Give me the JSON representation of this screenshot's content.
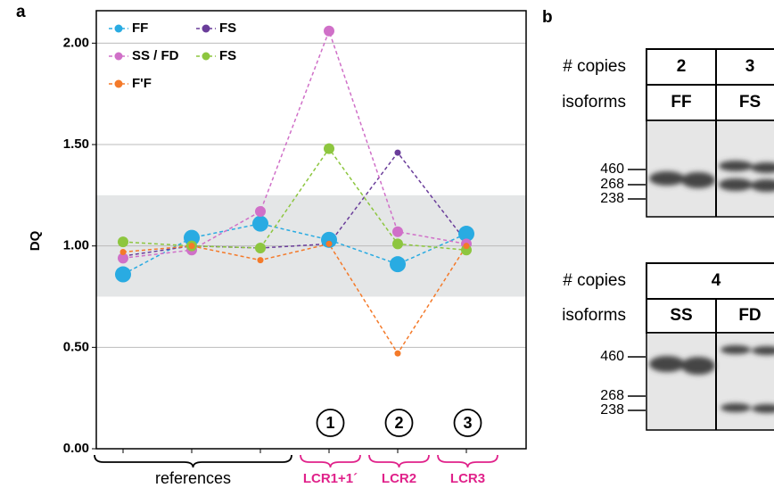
{
  "chart_data": {
    "type": "line",
    "panel_label": "a",
    "y_label": "DQ",
    "categories": [
      null,
      null,
      null,
      null,
      null,
      null
    ],
    "groups": [
      {
        "label": "references",
        "size": 3
      },
      {
        "label": "LCR1+1´",
        "number": "1",
        "size": 1
      },
      {
        "label": "LCR2",
        "number": "2",
        "size": 1
      },
      {
        "label": "LCR3",
        "number": "3",
        "size": 1
      }
    ],
    "series": [
      {
        "name": "FF",
        "color": "#29abe2",
        "values": [
          0.86,
          1.04,
          1.11,
          1.03,
          0.91,
          1.06
        ]
      },
      {
        "name": "FS",
        "color": "#6a3d9a",
        "values": [
          0.95,
          1.0,
          0.99,
          1.01,
          1.46,
          1.02
        ]
      },
      {
        "name": "SS / FD",
        "color": "#d070c8",
        "values": [
          0.94,
          0.98,
          1.17,
          2.06,
          1.07,
          1.01
        ]
      },
      {
        "name": "FS",
        "color": "#8dc63f",
        "values": [
          1.02,
          1.0,
          0.99,
          1.48,
          1.01,
          0.98
        ]
      },
      {
        "name": "F'F",
        "color": "#f47a2a",
        "values": [
          0.97,
          1.0,
          0.93,
          1.01,
          0.47,
          1.0
        ]
      }
    ],
    "ylim": [
      0,
      2.16
    ],
    "yticks": [
      {
        "value": 0,
        "label": "0.00"
      },
      {
        "value": 0.5,
        "label": "0.50"
      },
      {
        "value": 1,
        "label": "1.00"
      },
      {
        "value": 1.5,
        "label": "1.50"
      },
      {
        "value": 2,
        "label": "2.00"
      }
    ],
    "band": [
      0.75,
      1.25
    ],
    "grid": true,
    "legend": "upper left"
  },
  "panel_b": {
    "label": "b",
    "gels": [
      {
        "copies_label": "# copies",
        "isoforms_label": "isoforms",
        "copies": [
          "2",
          "3"
        ],
        "isoforms": [
          "FF",
          "FS"
        ],
        "markers": [
          "460",
          "268",
          "238"
        ]
      },
      {
        "copies_label": "# copies",
        "isoforms_label": "isoforms",
        "copies": [
          "4"
        ],
        "isoforms": [
          "SS",
          "FD"
        ],
        "markers": [
          "460",
          "268",
          "238"
        ]
      }
    ]
  }
}
